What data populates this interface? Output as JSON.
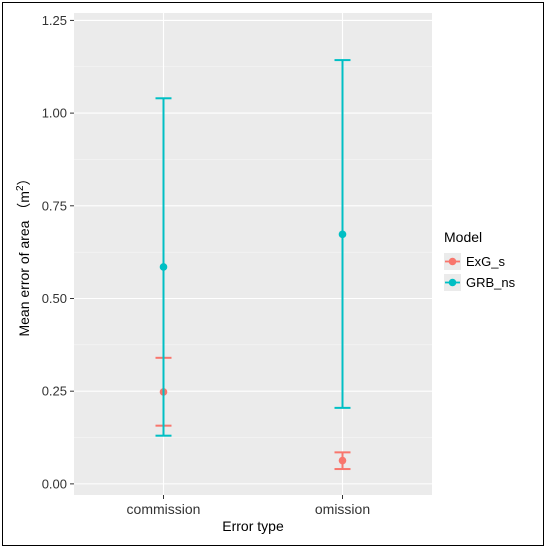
{
  "chart_data": {
    "type": "errorbar",
    "xlabel": "Error type",
    "ylabel": "Mean error of area （m",
    "ylabel_superscript": "2",
    "ylabel_close": "）",
    "categories": [
      "commission",
      "omission"
    ],
    "ylim": [
      -0.03,
      1.27
    ],
    "yticks": [
      0.0,
      0.25,
      0.5,
      0.75,
      1.0,
      1.25
    ],
    "ytick_labels": [
      "0.00",
      "0.25",
      "0.50",
      "0.75",
      "1.00",
      "1.25"
    ],
    "grid": true,
    "legend": {
      "title": "Model",
      "placement": "right"
    },
    "series": [
      {
        "name": "ExG_s",
        "color": "#F8766D",
        "points": [
          {
            "category": "commission",
            "mean": 0.248,
            "lower": 0.157,
            "upper": 0.34
          },
          {
            "category": "omission",
            "mean": 0.063,
            "lower": 0.04,
            "upper": 0.085
          }
        ]
      },
      {
        "name": "GRB_ns",
        "color": "#00BFC4",
        "points": [
          {
            "category": "commission",
            "mean": 0.585,
            "lower": 0.13,
            "upper": 1.04
          },
          {
            "category": "omission",
            "mean": 0.673,
            "lower": 0.205,
            "upper": 1.143
          }
        ]
      }
    ]
  }
}
